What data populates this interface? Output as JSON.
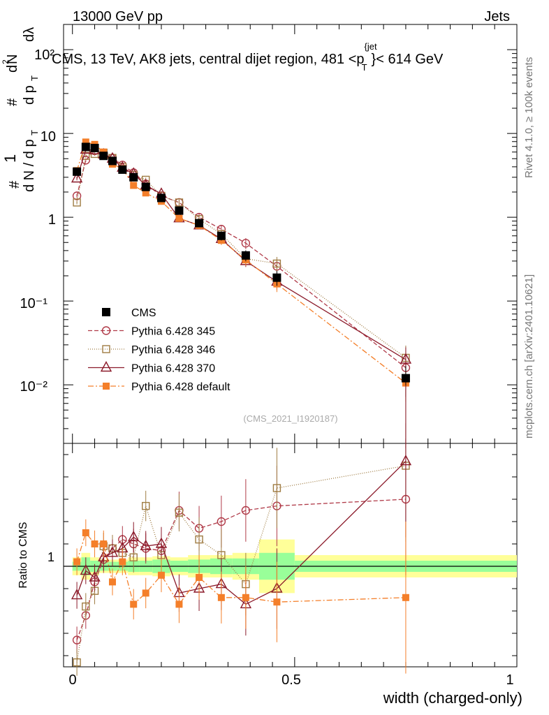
{
  "header": {
    "left": "13000 GeV pp",
    "right": "Jets"
  },
  "chart_data": [
    {
      "type": "line",
      "title": "CMS, 13 TeV, AK8 jets, central dijet region, 481 <p",
      "title_sup": "{jet",
      "title_sub": "T",
      "title_tail": "}< 614 GeV",
      "xlabel": "width (charged-only)",
      "ylabel": "d N / d p",
      "ylabel_parts": [
        "#",
        "1",
        "d N / d p",
        "T",
        "#",
        "d p",
        "T",
        "d",
        "N",
        "2",
        "dλ"
      ],
      "yscale": "log",
      "xlim": [
        -0.02,
        1.0
      ],
      "ylim": [
        0.002,
        200
      ],
      "ytick_labels": [
        "10⁻²",
        "10⁻¹",
        "1",
        "10",
        "10²"
      ],
      "watermark": "(CMS_2021_I1920187)",
      "side_text_top": "Rivet 4.1.0, ≥ 100k events",
      "side_text_bottom": "mcplots.cern.ch [arXiv:2401.10621]",
      "x": [
        0.01,
        0.03,
        0.05,
        0.07,
        0.09,
        0.1125,
        0.1375,
        0.165,
        0.2,
        0.24,
        0.285,
        0.335,
        0.39,
        0.46,
        0.75
      ],
      "series": [
        {
          "name": "CMS",
          "color": "#000000",
          "marker": "filled-square",
          "dash": "",
          "values": [
            3.5,
            6.9,
            6.7,
            5.4,
            4.7,
            3.7,
            3.0,
            2.3,
            1.7,
            1.2,
            0.85,
            0.6,
            0.35,
            0.19,
            0.012
          ]
        },
        {
          "name": "Pythia 6.428 345",
          "color": "#b03a48",
          "marker": "open-circle",
          "dash": "6,3",
          "values": [
            1.8,
            4.8,
            6.2,
            5.7,
            5.1,
            4.2,
            3.4,
            2.5,
            1.8,
            1.5,
            1.0,
            0.72,
            0.49,
            0.26,
            0.016
          ]
        },
        {
          "name": "Pythia 6.428 346",
          "color": "#9f7c43",
          "marker": "open-square",
          "dash": "1,2",
          "values": [
            1.5,
            5.4,
            5.7,
            5.9,
            5.1,
            4.0,
            3.2,
            2.8,
            1.8,
            1.5,
            0.95,
            0.63,
            0.32,
            0.28,
            0.021
          ]
        },
        {
          "name": "Pythia 6.428 370",
          "color": "#8b1a2a",
          "marker": "open-triangle",
          "dash": "",
          "values": [
            2.9,
            6.4,
            6.3,
            5.6,
            5.0,
            3.9,
            3.3,
            2.4,
            1.9,
            0.97,
            0.8,
            0.55,
            0.3,
            0.17,
            0.02
          ]
        },
        {
          "name": "Pythia 6.428 default",
          "color": "#f47f2a",
          "marker": "filled-square-small",
          "dash": "8,3,2,3",
          "values": [
            3.6,
            7.9,
            7.4,
            6.0,
            4.3,
            3.8,
            2.4,
            1.95,
            1.55,
            0.97,
            0.8,
            0.53,
            0.31,
            0.16,
            0.0105
          ]
        }
      ]
    },
    {
      "type": "line",
      "title": "",
      "xlabel": "width (charged-only)",
      "ylabel": "Ratio to CMS",
      "xlim": [
        -0.02,
        1.0
      ],
      "ylim": [
        0.55,
        1.55
      ],
      "xtick_labels": [
        "0",
        "0.5",
        "1"
      ],
      "ytick_labels": [
        "1"
      ],
      "band_edges": [
        0.0,
        0.02,
        0.04,
        0.06,
        0.08,
        0.1,
        0.125,
        0.15,
        0.18,
        0.22,
        0.26,
        0.31,
        0.36,
        0.42,
        0.5,
        1.0
      ],
      "band_inner": [
        0.02,
        0.04,
        0.025,
        0.02,
        0.02,
        0.02,
        0.025,
        0.025,
        0.03,
        0.025,
        0.03,
        0.035,
        0.035,
        0.06,
        0.025
      ],
      "band_outer": [
        0.04,
        0.06,
        0.04,
        0.03,
        0.03,
        0.03,
        0.04,
        0.04,
        0.045,
        0.04,
        0.05,
        0.05,
        0.06,
        0.12,
        0.05
      ],
      "band_colors": {
        "inner": "#99ff99",
        "outer": "#ffff99"
      },
      "series": [
        {
          "name": "Pythia 6.428 345",
          "values": [
            0.67,
            0.78,
            0.93,
            1.03,
            1.08,
            1.12,
            1.1,
            1.08,
            1.07,
            1.25,
            1.17,
            1.2,
            1.25,
            1.27,
            1.3
          ]
        },
        {
          "name": "Pythia 6.428 346",
          "values": [
            0.57,
            0.82,
            0.89,
            1.09,
            1.08,
            1.06,
            1.04,
            1.27,
            1.05,
            1.24,
            1.12,
            1.05,
            0.92,
            1.35,
            1.45
          ]
        },
        {
          "name": "Pythia 6.428 370",
          "values": [
            0.87,
            0.98,
            0.95,
            1.04,
            1.06,
            1.08,
            1.13,
            1.09,
            1.1,
            0.88,
            0.9,
            0.92,
            0.83,
            0.9,
            1.47
          ]
        },
        {
          "name": "Pythia 6.428 default",
          "values": [
            1.02,
            1.15,
            1.1,
            1.1,
            0.93,
            1.02,
            0.83,
            0.88,
            0.96,
            0.83,
            0.95,
            0.86,
            0.86,
            0.84,
            0.86
          ]
        }
      ]
    }
  ]
}
